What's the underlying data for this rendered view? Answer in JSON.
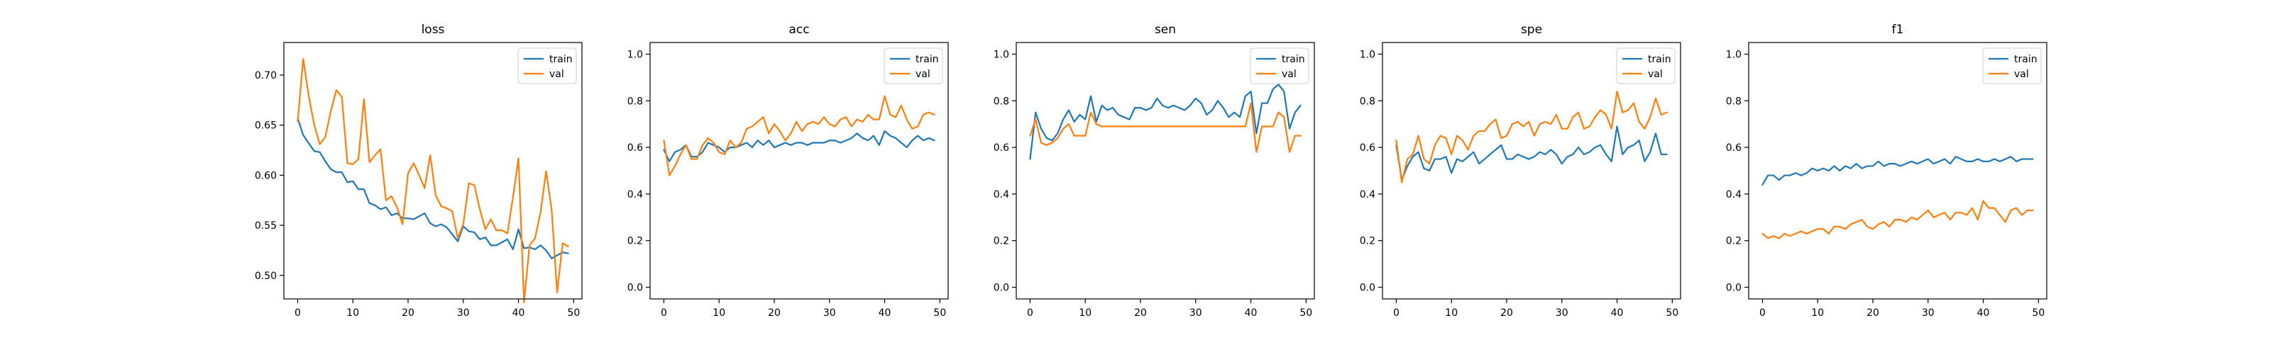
{
  "chart_data": [
    {
      "type": "line",
      "title": "loss",
      "xlabel": "",
      "ylabel": "",
      "xlim": [
        -2.5,
        51.5
      ],
      "ylim": [
        0.4765,
        0.7325
      ],
      "xticks": [
        0,
        10,
        20,
        30,
        40,
        50
      ],
      "yticks": [
        0.5,
        0.55,
        0.6,
        0.65,
        0.7
      ],
      "ytick_labels": [
        "0.50",
        "0.55",
        "0.60",
        "0.65",
        "0.70"
      ],
      "grid": false,
      "legend": "top-right",
      "x": [
        0,
        1,
        2,
        3,
        4,
        5,
        6,
        7,
        8,
        9,
        10,
        11,
        12,
        13,
        14,
        15,
        16,
        17,
        18,
        19,
        20,
        21,
        22,
        23,
        24,
        25,
        26,
        27,
        28,
        29,
        30,
        31,
        32,
        33,
        34,
        35,
        36,
        37,
        38,
        39,
        40,
        41,
        42,
        43,
        44,
        45,
        46,
        47,
        48,
        49
      ],
      "series": [
        {
          "name": "train",
          "color": "#1f77b4",
          "values": [
            0.657,
            0.64,
            0.632,
            0.624,
            0.623,
            0.614,
            0.606,
            0.603,
            0.603,
            0.593,
            0.594,
            0.586,
            0.586,
            0.572,
            0.57,
            0.566,
            0.568,
            0.56,
            0.562,
            0.557,
            0.557,
            0.556,
            0.559,
            0.562,
            0.552,
            0.549,
            0.551,
            0.548,
            0.541,
            0.534,
            0.549,
            0.544,
            0.543,
            0.536,
            0.538,
            0.53,
            0.53,
            0.533,
            0.536,
            0.526,
            0.546,
            0.527,
            0.528,
            0.526,
            0.53,
            0.525,
            0.517,
            0.52,
            0.523,
            0.522
          ]
        },
        {
          "name": "val",
          "color": "#ff7f0e",
          "values": [
            0.654,
            0.716,
            0.679,
            0.65,
            0.631,
            0.638,
            0.664,
            0.685,
            0.678,
            0.612,
            0.611,
            0.616,
            0.676,
            0.613,
            0.62,
            0.626,
            0.575,
            0.579,
            0.568,
            0.551,
            0.602,
            0.612,
            0.6,
            0.587,
            0.62,
            0.58,
            0.569,
            0.567,
            0.564,
            0.537,
            0.551,
            0.592,
            0.59,
            0.566,
            0.546,
            0.556,
            0.545,
            0.545,
            0.542,
            0.578,
            0.617,
            0.473,
            0.53,
            0.537,
            0.563,
            0.604,
            0.566,
            0.483,
            0.532,
            0.529
          ]
        }
      ]
    },
    {
      "type": "line",
      "title": "acc",
      "xlabel": "",
      "ylabel": "",
      "xlim": [
        -2.5,
        51.5
      ],
      "ylim": [
        -0.05,
        1.05
      ],
      "xticks": [
        0,
        10,
        20,
        30,
        40,
        50
      ],
      "yticks": [
        0.0,
        0.2,
        0.4,
        0.6,
        0.8,
        1.0
      ],
      "ytick_labels": [
        "0.0",
        "0.2",
        "0.4",
        "0.6",
        "0.8",
        "1.0"
      ],
      "grid": false,
      "legend": "top-right",
      "x": [
        0,
        1,
        2,
        3,
        4,
        5,
        6,
        7,
        8,
        9,
        10,
        11,
        12,
        13,
        14,
        15,
        16,
        17,
        18,
        19,
        20,
        21,
        22,
        23,
        24,
        25,
        26,
        27,
        28,
        29,
        30,
        31,
        32,
        33,
        34,
        35,
        36,
        37,
        38,
        39,
        40,
        41,
        42,
        43,
        44,
        45,
        46,
        47,
        48,
        49
      ],
      "series": [
        {
          "name": "train",
          "color": "#1f77b4",
          "values": [
            0.59,
            0.54,
            0.58,
            0.59,
            0.61,
            0.56,
            0.56,
            0.58,
            0.62,
            0.61,
            0.6,
            0.58,
            0.6,
            0.6,
            0.61,
            0.62,
            0.6,
            0.63,
            0.61,
            0.63,
            0.6,
            0.61,
            0.62,
            0.61,
            0.62,
            0.62,
            0.61,
            0.62,
            0.62,
            0.62,
            0.63,
            0.63,
            0.62,
            0.63,
            0.64,
            0.66,
            0.64,
            0.63,
            0.65,
            0.61,
            0.67,
            0.65,
            0.64,
            0.62,
            0.6,
            0.63,
            0.65,
            0.63,
            0.64,
            0.63
          ]
        },
        {
          "name": "val",
          "color": "#ff7f0e",
          "values": [
            0.63,
            0.48,
            0.52,
            0.57,
            0.61,
            0.55,
            0.55,
            0.61,
            0.64,
            0.62,
            0.58,
            0.57,
            0.63,
            0.6,
            0.62,
            0.68,
            0.69,
            0.71,
            0.73,
            0.66,
            0.7,
            0.67,
            0.63,
            0.66,
            0.71,
            0.67,
            0.7,
            0.71,
            0.7,
            0.73,
            0.7,
            0.69,
            0.72,
            0.73,
            0.69,
            0.72,
            0.71,
            0.74,
            0.72,
            0.72,
            0.82,
            0.74,
            0.73,
            0.78,
            0.72,
            0.68,
            0.69,
            0.74,
            0.75,
            0.74
          ]
        }
      ]
    },
    {
      "type": "line",
      "title": "sen",
      "xlabel": "",
      "ylabel": "",
      "xlim": [
        -2.5,
        51.5
      ],
      "ylim": [
        -0.05,
        1.05
      ],
      "xticks": [
        0,
        10,
        20,
        30,
        40,
        50
      ],
      "yticks": [
        0.0,
        0.2,
        0.4,
        0.6,
        0.8,
        1.0
      ],
      "ytick_labels": [
        "0.0",
        "0.2",
        "0.4",
        "0.6",
        "0.8",
        "1.0"
      ],
      "grid": false,
      "legend": "top-right",
      "x": [
        0,
        1,
        2,
        3,
        4,
        5,
        6,
        7,
        8,
        9,
        10,
        11,
        12,
        13,
        14,
        15,
        16,
        17,
        18,
        19,
        20,
        21,
        22,
        23,
        24,
        25,
        26,
        27,
        28,
        29,
        30,
        31,
        32,
        33,
        34,
        35,
        36,
        37,
        38,
        39,
        40,
        41,
        42,
        43,
        44,
        45,
        46,
        47,
        48,
        49
      ],
      "series": [
        {
          "name": "train",
          "color": "#1f77b4",
          "values": [
            0.55,
            0.75,
            0.68,
            0.64,
            0.63,
            0.66,
            0.72,
            0.76,
            0.71,
            0.74,
            0.72,
            0.82,
            0.71,
            0.78,
            0.76,
            0.77,
            0.74,
            0.73,
            0.72,
            0.77,
            0.77,
            0.76,
            0.77,
            0.81,
            0.78,
            0.77,
            0.78,
            0.77,
            0.76,
            0.78,
            0.81,
            0.79,
            0.74,
            0.76,
            0.8,
            0.77,
            0.73,
            0.75,
            0.73,
            0.82,
            0.84,
            0.66,
            0.79,
            0.79,
            0.85,
            0.87,
            0.84,
            0.68,
            0.75,
            0.78
          ]
        },
        {
          "name": "val",
          "color": "#ff7f0e",
          "values": [
            0.65,
            0.72,
            0.62,
            0.61,
            0.62,
            0.64,
            0.68,
            0.7,
            0.65,
            0.65,
            0.65,
            0.75,
            0.7,
            0.69,
            0.69,
            0.69,
            0.69,
            0.69,
            0.69,
            0.69,
            0.69,
            0.69,
            0.69,
            0.69,
            0.69,
            0.69,
            0.69,
            0.69,
            0.69,
            0.69,
            0.69,
            0.69,
            0.69,
            0.69,
            0.69,
            0.69,
            0.69,
            0.69,
            0.69,
            0.69,
            0.79,
            0.58,
            0.69,
            0.69,
            0.69,
            0.75,
            0.73,
            0.58,
            0.65,
            0.65
          ]
        }
      ]
    },
    {
      "type": "line",
      "title": "spe",
      "xlabel": "",
      "ylabel": "",
      "xlim": [
        -2.5,
        51.5
      ],
      "ylim": [
        -0.05,
        1.05
      ],
      "xticks": [
        0,
        10,
        20,
        30,
        40,
        50
      ],
      "yticks": [
        0.0,
        0.2,
        0.4,
        0.6,
        0.8,
        1.0
      ],
      "ytick_labels": [
        "0.0",
        "0.2",
        "0.4",
        "0.6",
        "0.8",
        "1.0"
      ],
      "grid": false,
      "legend": "top-right",
      "x": [
        0,
        1,
        2,
        3,
        4,
        5,
        6,
        7,
        8,
        9,
        10,
        11,
        12,
        13,
        14,
        15,
        16,
        17,
        18,
        19,
        20,
        21,
        22,
        23,
        24,
        25,
        26,
        27,
        28,
        29,
        30,
        31,
        32,
        33,
        34,
        35,
        36,
        37,
        38,
        39,
        40,
        41,
        42,
        43,
        44,
        45,
        46,
        47,
        48,
        49
      ],
      "series": [
        {
          "name": "train",
          "color": "#1f77b4",
          "values": [
            0.61,
            0.46,
            0.52,
            0.56,
            0.58,
            0.51,
            0.5,
            0.55,
            0.55,
            0.56,
            0.49,
            0.55,
            0.54,
            0.56,
            0.58,
            0.53,
            0.55,
            0.57,
            0.59,
            0.61,
            0.55,
            0.55,
            0.57,
            0.56,
            0.55,
            0.56,
            0.58,
            0.57,
            0.59,
            0.57,
            0.53,
            0.56,
            0.57,
            0.6,
            0.57,
            0.58,
            0.6,
            0.61,
            0.57,
            0.54,
            0.69,
            0.57,
            0.6,
            0.61,
            0.63,
            0.54,
            0.58,
            0.66,
            0.57,
            0.57
          ]
        },
        {
          "name": "val",
          "color": "#ff7f0e",
          "values": [
            0.63,
            0.45,
            0.55,
            0.57,
            0.65,
            0.55,
            0.53,
            0.61,
            0.65,
            0.64,
            0.57,
            0.65,
            0.63,
            0.59,
            0.65,
            0.67,
            0.67,
            0.7,
            0.72,
            0.64,
            0.65,
            0.7,
            0.71,
            0.69,
            0.71,
            0.65,
            0.7,
            0.71,
            0.7,
            0.74,
            0.68,
            0.68,
            0.73,
            0.75,
            0.68,
            0.69,
            0.73,
            0.76,
            0.74,
            0.68,
            0.84,
            0.75,
            0.76,
            0.79,
            0.71,
            0.68,
            0.73,
            0.81,
            0.74,
            0.75
          ]
        }
      ]
    },
    {
      "type": "line",
      "title": "f1",
      "xlabel": "",
      "ylabel": "",
      "xlim": [
        -2.5,
        51.5
      ],
      "ylim": [
        -0.05,
        1.05
      ],
      "xticks": [
        0,
        10,
        20,
        30,
        40,
        50
      ],
      "yticks": [
        0.0,
        0.2,
        0.4,
        0.6,
        0.8,
        1.0
      ],
      "ytick_labels": [
        "0.0",
        "0.2",
        "0.4",
        "0.6",
        "0.8",
        "1.0"
      ],
      "grid": false,
      "legend": "top-right",
      "x": [
        0,
        1,
        2,
        3,
        4,
        5,
        6,
        7,
        8,
        9,
        10,
        11,
        12,
        13,
        14,
        15,
        16,
        17,
        18,
        19,
        20,
        21,
        22,
        23,
        24,
        25,
        26,
        27,
        28,
        29,
        30,
        31,
        32,
        33,
        34,
        35,
        36,
        37,
        38,
        39,
        40,
        41,
        42,
        43,
        44,
        45,
        46,
        47,
        48,
        49
      ],
      "series": [
        {
          "name": "train",
          "color": "#1f77b4",
          "values": [
            0.44,
            0.48,
            0.48,
            0.46,
            0.48,
            0.48,
            0.49,
            0.48,
            0.49,
            0.51,
            0.5,
            0.51,
            0.5,
            0.52,
            0.5,
            0.52,
            0.51,
            0.53,
            0.51,
            0.52,
            0.52,
            0.54,
            0.52,
            0.53,
            0.53,
            0.52,
            0.53,
            0.54,
            0.53,
            0.54,
            0.55,
            0.53,
            0.54,
            0.55,
            0.53,
            0.56,
            0.55,
            0.54,
            0.54,
            0.55,
            0.54,
            0.54,
            0.55,
            0.54,
            0.55,
            0.56,
            0.54,
            0.55,
            0.55,
            0.55
          ]
        },
        {
          "name": "val",
          "color": "#ff7f0e",
          "values": [
            0.23,
            0.21,
            0.22,
            0.21,
            0.23,
            0.22,
            0.23,
            0.24,
            0.23,
            0.24,
            0.25,
            0.25,
            0.23,
            0.26,
            0.26,
            0.25,
            0.27,
            0.28,
            0.29,
            0.26,
            0.25,
            0.27,
            0.28,
            0.26,
            0.29,
            0.29,
            0.28,
            0.3,
            0.29,
            0.31,
            0.33,
            0.3,
            0.31,
            0.32,
            0.29,
            0.32,
            0.32,
            0.31,
            0.34,
            0.29,
            0.37,
            0.34,
            0.34,
            0.31,
            0.28,
            0.33,
            0.34,
            0.31,
            0.33,
            0.33
          ]
        }
      ]
    }
  ]
}
